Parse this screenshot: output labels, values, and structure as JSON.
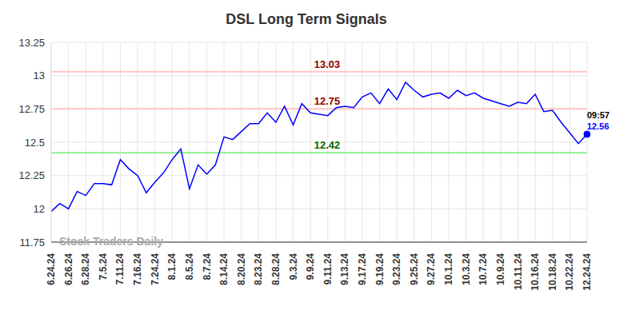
{
  "chart_data": {
    "type": "line",
    "title": "DSL Long Term Signals",
    "watermark": "Stock Traders Daily",
    "categories": [
      "6.24.24",
      null,
      "6.26.24",
      null,
      "6.28.24",
      null,
      "7.5.24",
      null,
      "7.11.24",
      null,
      "7.16.24",
      null,
      "7.24.24",
      null,
      "8.1.24",
      null,
      "8.5.24",
      null,
      "8.7.24",
      null,
      "8.14.24",
      null,
      "8.20.24",
      null,
      "8.23.24",
      null,
      "8.28.24",
      null,
      "9.3.24",
      null,
      "9.9.24",
      null,
      "9.11.24",
      null,
      "9.13.24",
      null,
      "9.17.24",
      null,
      "9.19.24",
      null,
      "9.23.24",
      null,
      "9.25.24",
      null,
      "9.27.24",
      null,
      "10.1.24",
      null,
      "10.3.24",
      null,
      "10.7.24",
      null,
      "10.9.24",
      null,
      "10.11.24",
      null,
      "10.16.24",
      null,
      "10.18.24",
      null,
      "10.22.24",
      null,
      "12.24.24"
    ],
    "values": [
      11.98,
      12.04,
      12.0,
      12.13,
      12.1,
      12.19,
      12.19,
      12.18,
      12.37,
      12.3,
      12.25,
      12.12,
      12.2,
      12.27,
      12.37,
      12.45,
      12.15,
      12.33,
      12.26,
      12.33,
      12.54,
      12.52,
      12.58,
      12.64,
      12.64,
      12.72,
      12.65,
      12.77,
      12.63,
      12.79,
      12.72,
      12.71,
      12.7,
      12.76,
      12.77,
      12.76,
      12.84,
      12.87,
      12.79,
      12.9,
      12.82,
      12.95,
      12.89,
      12.84,
      12.86,
      12.87,
      12.83,
      12.89,
      12.85,
      12.87,
      12.83,
      12.81,
      12.79,
      12.77,
      12.8,
      12.79,
      12.86,
      12.73,
      12.74,
      12.65,
      12.57,
      12.49,
      12.56
    ],
    "color": "#0000ff",
    "last_point_time": "09:57",
    "signals": [
      {
        "value": 13.03,
        "color": "#ffc4c4"
      },
      {
        "value": 12.75,
        "color": "#ffc4c4"
      },
      {
        "value": 12.42,
        "color": "#90ee90"
      }
    ],
    "ylim": [
      11.75,
      13.25
    ],
    "yticks": [
      11.75,
      12,
      12.25,
      12.5,
      12.75,
      13,
      13.25
    ],
    "grid": true
  }
}
